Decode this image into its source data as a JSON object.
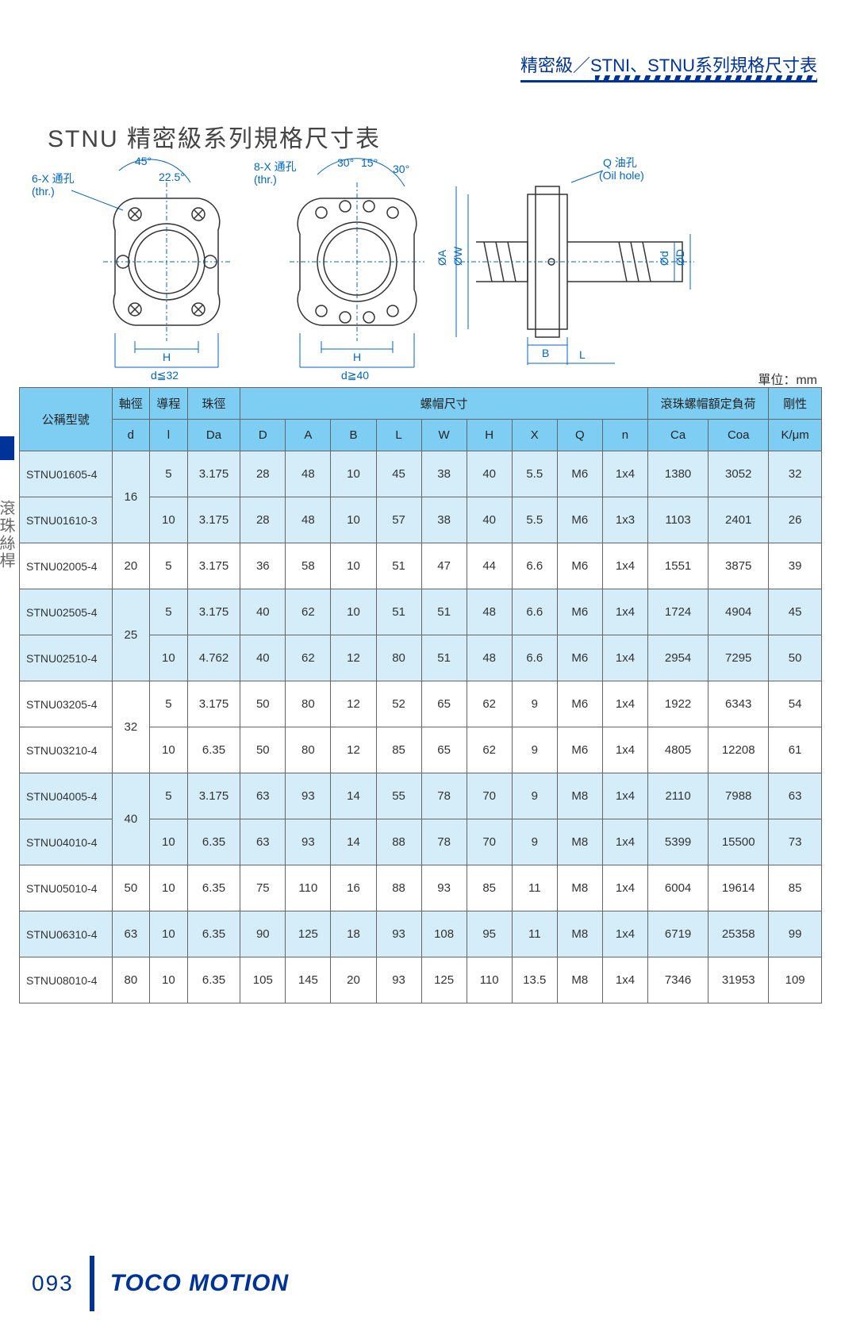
{
  "header": {
    "title": "精密級／STNI、STNU系列規格尺寸表"
  },
  "page_title": "STNU 精密級系列規格尺寸表",
  "unit_label": "單位：mm",
  "side_label": "滾珠絲桿",
  "diagram_labels": {
    "thru1": "6-X 通孔",
    "thru1b": "(thr.)",
    "thru2": "8-X 通孔",
    "thru2b": "(thr.)",
    "oil": "Q 油孔",
    "oil_en": "(Oil hole)",
    "angle45": "45°",
    "angle225": "22.5°",
    "angle30a": "30°",
    "angle15": "15°",
    "angle30b": "30°",
    "H": "H",
    "dle32": "d≦32",
    "dge40": "d≧40",
    "B": "B",
    "L": "L",
    "phiA": "ØA",
    "phiW": "ØW",
    "phid": "Ød",
    "phiD": "ØD"
  },
  "table": {
    "headers": {
      "model": "公稱型號",
      "shaft_dia": "軸徑",
      "shaft_d": "d",
      "lead": "導程",
      "lead_l": "l",
      "ball_dia": "珠徑",
      "ball_da": "Da",
      "nut_dim": "螺帽尺寸",
      "D": "D",
      "A": "A",
      "B": "B",
      "L": "L",
      "W": "W",
      "Hh": "H",
      "X": "X",
      "Q": "Q",
      "n": "n",
      "rated_load": "滾珠螺帽額定負荷",
      "Ca": "Ca",
      "Coa": "Coa",
      "stiffness": "剛性",
      "stiffness_unit": "K/μm"
    },
    "rows": [
      {
        "model": "STNU01605-4",
        "d": "16",
        "l": "5",
        "Da": "3.175",
        "D": "28",
        "A": "48",
        "B": "10",
        "L": "45",
        "W": "38",
        "H": "40",
        "X": "5.5",
        "Q": "M6",
        "n": "1x4",
        "Ca": "1380",
        "Coa": "3052",
        "K": "32",
        "shade": "odd"
      },
      {
        "model": "STNU01610-3",
        "d": "",
        "l": "10",
        "Da": "3.175",
        "D": "28",
        "A": "48",
        "B": "10",
        "L": "57",
        "W": "38",
        "H": "40",
        "X": "5.5",
        "Q": "M6",
        "n": "1x3",
        "Ca": "1103",
        "Coa": "2401",
        "K": "26",
        "shade": "odd"
      },
      {
        "model": "STNU02005-4",
        "d": "20",
        "l": "5",
        "Da": "3.175",
        "D": "36",
        "A": "58",
        "B": "10",
        "L": "51",
        "W": "47",
        "H": "44",
        "X": "6.6",
        "Q": "M6",
        "n": "1x4",
        "Ca": "1551",
        "Coa": "3875",
        "K": "39",
        "shade": "even"
      },
      {
        "model": "STNU02505-4",
        "d": "25",
        "l": "5",
        "Da": "3.175",
        "D": "40",
        "A": "62",
        "B": "10",
        "L": "51",
        "W": "51",
        "H": "48",
        "X": "6.6",
        "Q": "M6",
        "n": "1x4",
        "Ca": "1724",
        "Coa": "4904",
        "K": "45",
        "shade": "odd"
      },
      {
        "model": "STNU02510-4",
        "d": "",
        "l": "10",
        "Da": "4.762",
        "D": "40",
        "A": "62",
        "B": "12",
        "L": "80",
        "W": "51",
        "H": "48",
        "X": "6.6",
        "Q": "M6",
        "n": "1x4",
        "Ca": "2954",
        "Coa": "7295",
        "K": "50",
        "shade": "odd"
      },
      {
        "model": "STNU03205-4",
        "d": "32",
        "l": "5",
        "Da": "3.175",
        "D": "50",
        "A": "80",
        "B": "12",
        "L": "52",
        "W": "65",
        "H": "62",
        "X": "9",
        "Q": "M6",
        "n": "1x4",
        "Ca": "1922",
        "Coa": "6343",
        "K": "54",
        "shade": "even"
      },
      {
        "model": "STNU03210-4",
        "d": "",
        "l": "10",
        "Da": "6.35",
        "D": "50",
        "A": "80",
        "B": "12",
        "L": "85",
        "W": "65",
        "H": "62",
        "X": "9",
        "Q": "M6",
        "n": "1x4",
        "Ca": "4805",
        "Coa": "12208",
        "K": "61",
        "shade": "even"
      },
      {
        "model": "STNU04005-4",
        "d": "40",
        "l": "5",
        "Da": "3.175",
        "D": "63",
        "A": "93",
        "B": "14",
        "L": "55",
        "W": "78",
        "H": "70",
        "X": "9",
        "Q": "M8",
        "n": "1x4",
        "Ca": "2110",
        "Coa": "7988",
        "K": "63",
        "shade": "odd"
      },
      {
        "model": "STNU04010-4",
        "d": "",
        "l": "10",
        "Da": "6.35",
        "D": "63",
        "A": "93",
        "B": "14",
        "L": "88",
        "W": "78",
        "H": "70",
        "X": "9",
        "Q": "M8",
        "n": "1x4",
        "Ca": "5399",
        "Coa": "15500",
        "K": "73",
        "shade": "odd"
      },
      {
        "model": "STNU05010-4",
        "d": "50",
        "l": "10",
        "Da": "6.35",
        "D": "75",
        "A": "110",
        "B": "16",
        "L": "88",
        "W": "93",
        "H": "85",
        "X": "11",
        "Q": "M8",
        "n": "1x4",
        "Ca": "6004",
        "Coa": "19614",
        "K": "85",
        "shade": "even"
      },
      {
        "model": "STNU06310-4",
        "d": "63",
        "l": "10",
        "Da": "6.35",
        "D": "90",
        "A": "125",
        "B": "18",
        "L": "93",
        "W": "108",
        "H": "95",
        "X": "11",
        "Q": "M8",
        "n": "1x4",
        "Ca": "6719",
        "Coa": "25358",
        "K": "99",
        "shade": "odd"
      },
      {
        "model": "STNU08010-4",
        "d": "80",
        "l": "10",
        "Da": "6.35",
        "D": "105",
        "A": "145",
        "B": "20",
        "L": "93",
        "W": "125",
        "H": "110",
        "X": "13.5",
        "Q": "M8",
        "n": "1x4",
        "Ca": "7346",
        "Coa": "31953",
        "K": "109",
        "shade": "even"
      }
    ],
    "merges": [
      {
        "start": 0,
        "span": 2,
        "d": "16"
      },
      {
        "start": 3,
        "span": 2,
        "d": "25"
      },
      {
        "start": 5,
        "span": 2,
        "d": "32"
      },
      {
        "start": 7,
        "span": 2,
        "d": "40"
      }
    ]
  },
  "footer": {
    "page": "093",
    "brand": "TOCO MOTION"
  },
  "colors": {
    "primary": "#003399",
    "header_bg": "#7ecef4",
    "row_odd": "#d5edf8",
    "row_even": "#ffffff",
    "diagram": "#0066cc"
  }
}
